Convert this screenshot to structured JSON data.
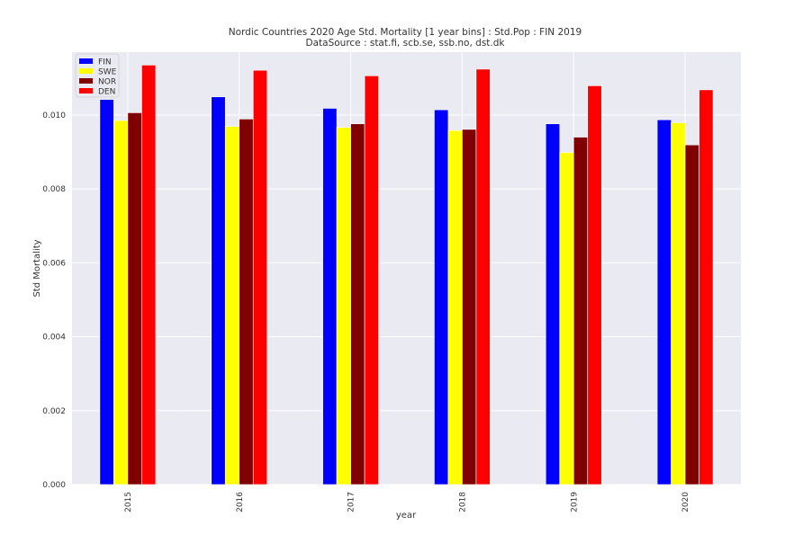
{
  "chart_data": {
    "type": "bar",
    "title": "Nordic Countries 2020 Age Std. Mortality [1 year bins] : Std.Pop : FIN 2019",
    "subtitle": "DataSource : stat.fi, scb.se, ssb.no, dst.dk",
    "xlabel": "year",
    "ylabel": "Std Mortality",
    "ylim": [
      0,
      0.0117
    ],
    "yticks": [
      "0.000",
      "0.002",
      "0.004",
      "0.006",
      "0.008",
      "0.010"
    ],
    "grid": true,
    "legend_position": "top-left",
    "categories": [
      "2015",
      "2016",
      "2017",
      "2018",
      "2019",
      "2020"
    ],
    "series": [
      {
        "name": "FIN",
        "color": "#0000ff",
        "values": [
          0.01042,
          0.01049,
          0.01018,
          0.01014,
          0.00976,
          0.00987
        ]
      },
      {
        "name": "SWE",
        "color": "#ffff00",
        "values": [
          0.00985,
          0.00969,
          0.00966,
          0.00958,
          0.00898,
          0.00979
        ]
      },
      {
        "name": "NOR",
        "color": "#800000",
        "values": [
          0.01006,
          0.00989,
          0.00976,
          0.00961,
          0.0094,
          0.00919
        ]
      },
      {
        "name": "DEN",
        "color": "#ff0000",
        "values": [
          0.01135,
          0.01121,
          0.01106,
          0.01124,
          0.01079,
          0.01068
        ]
      }
    ]
  }
}
